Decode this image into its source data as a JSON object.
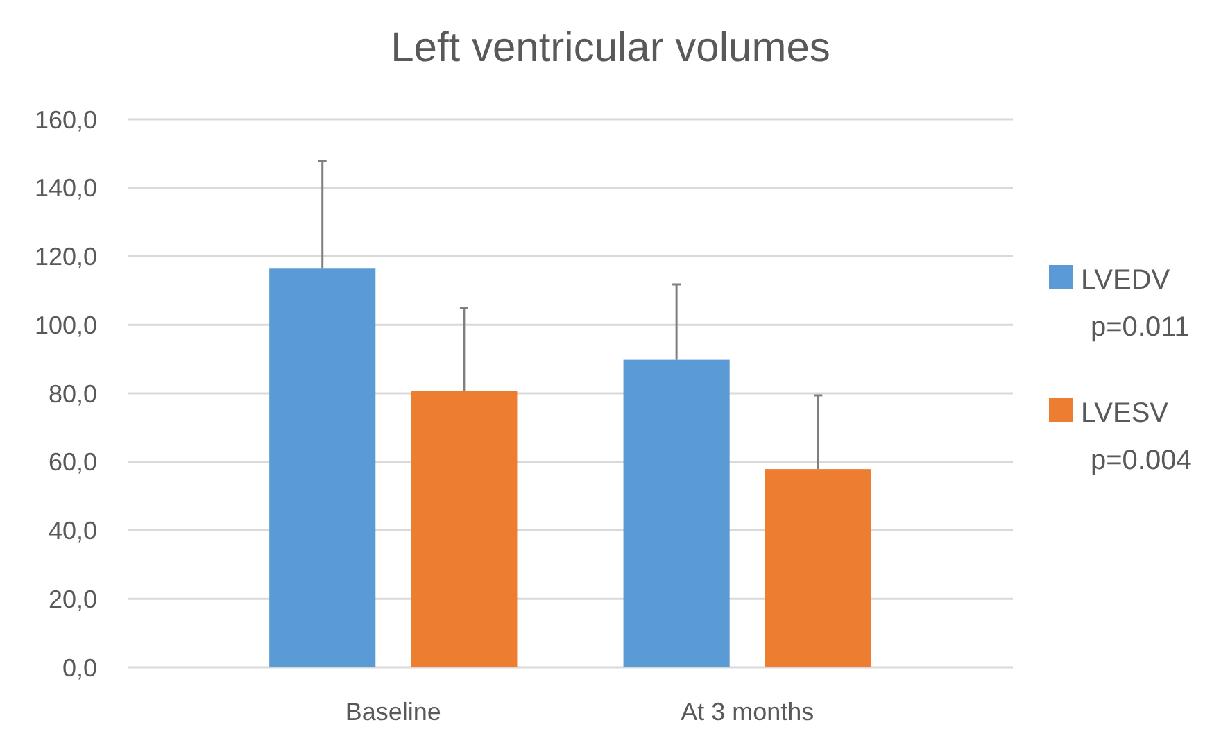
{
  "chart_data": {
    "type": "bar",
    "title": "Left ventricular volumes",
    "categories": [
      "Baseline",
      "At 3 months"
    ],
    "series": [
      {
        "name": "LVEDV p=0.011",
        "color": "#5b9bd5",
        "values": [
          116.4,
          89.8
        ],
        "errors": [
          [
            116.4,
            147.9
          ],
          [
            89.8,
            111.8
          ]
        ]
      },
      {
        "name": "LVESV p=0.004",
        "color": "#ed7d31",
        "values": [
          80.7,
          57.9
        ],
        "errors": [
          [
            80.7,
            104.9
          ],
          [
            57.9,
            79.4
          ]
        ]
      }
    ],
    "ylim": [
      0,
      160
    ],
    "yticks": [
      {
        "value": 0,
        "label": "0,0"
      },
      {
        "value": 20,
        "label": "20,0"
      },
      {
        "value": 40,
        "label": "40,0"
      },
      {
        "value": 60,
        "label": "60,0"
      },
      {
        "value": 80,
        "label": "80,0"
      },
      {
        "value": 100,
        "label": "100,0"
      },
      {
        "value": 120,
        "label": "120,0"
      },
      {
        "value": 140,
        "label": "140,0"
      },
      {
        "value": 160,
        "label": "160,0"
      }
    ],
    "grid": "y",
    "legend": "right"
  }
}
